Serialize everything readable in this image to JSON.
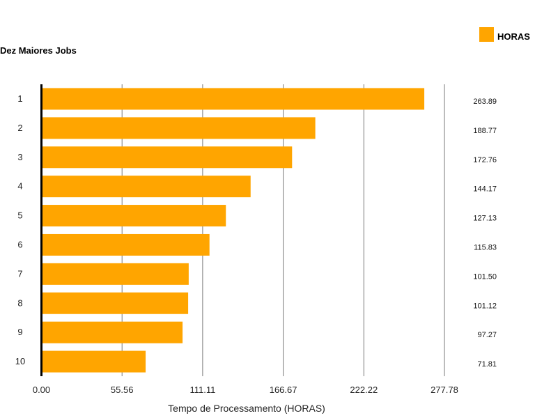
{
  "chart_data": {
    "type": "bar",
    "orientation": "horizontal",
    "title": "Dez Maiores Jobs",
    "xlabel": "Tempo de Processamento (HORAS)",
    "ylabel": "",
    "categories": [
      "1",
      "2",
      "3",
      "4",
      "5",
      "6",
      "7",
      "8",
      "9",
      "10"
    ],
    "series": [
      {
        "name": "HORAS",
        "color": "#ffa500",
        "values": [
          263.89,
          188.77,
          172.76,
          144.17,
          127.13,
          115.83,
          101.5,
          101.12,
          97.27,
          71.81
        ]
      }
    ],
    "value_labels": [
      "263.89",
      "188.77",
      "172.76",
      "144.17",
      "127.13",
      "115.83",
      "101.50",
      "101.12",
      "97.27",
      "71.81"
    ],
    "xlim": [
      0,
      277.78
    ],
    "x_ticks": [
      0,
      55.56,
      111.11,
      166.67,
      222.22,
      277.78
    ],
    "x_tick_labels": [
      "0.00",
      "55.56",
      "111.11",
      "166.67",
      "222.22",
      "277.78"
    ],
    "grid": true,
    "legend": {
      "position": "top-right",
      "label": "HORAS"
    }
  }
}
